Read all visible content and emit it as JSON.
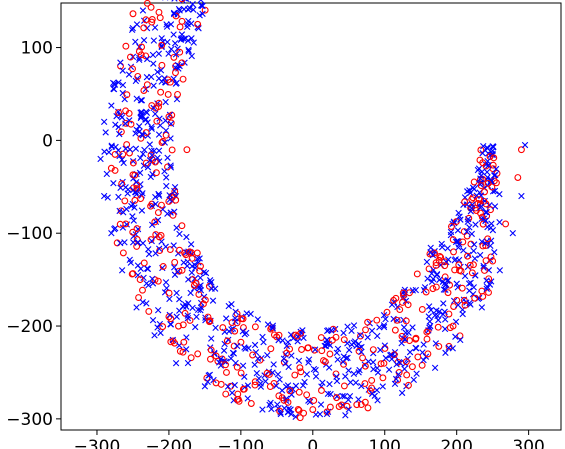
{
  "chart_data": {
    "type": "scatter",
    "title": "",
    "xlabel": "",
    "ylabel": "",
    "xlim": [
      -350,
      345
    ],
    "ylim": [
      -312,
      148
    ],
    "xticks": [
      -300,
      -200,
      -100,
      0,
      100,
      200,
      300
    ],
    "yticks": [
      -300,
      -200,
      -100,
      0,
      100
    ],
    "xtick_labels": [
      "−300",
      "−200",
      "−100",
      "0",
      "100",
      "200",
      "300"
    ],
    "ytick_labels": [
      "−300",
      "−200",
      "−100",
      "0",
      "100"
    ],
    "grid": false,
    "legend": "none",
    "shape": {
      "center": [
        0,
        -10
      ],
      "outer_radius": 290,
      "inner_radius": 195,
      "angle_start_deg": 116,
      "angle_end_deg": 361,
      "tip_start": [
        -185,
        140
      ],
      "tip_end": [
        295,
        -5
      ]
    },
    "series": [
      {
        "marker": "x",
        "color": "#0000ff",
        "count": 900,
        "values": [
          [
            -185,
            140
          ],
          [
            -160,
            122
          ],
          [
            -210,
            110
          ],
          [
            -250,
            90
          ],
          [
            -275,
            60
          ],
          [
            -290,
            20
          ],
          [
            -295,
            -20
          ],
          [
            -290,
            -60
          ],
          [
            -280,
            -100
          ],
          [
            -265,
            -140
          ],
          [
            -245,
            -180
          ],
          [
            -220,
            -210
          ],
          [
            -190,
            -240
          ],
          [
            -150,
            -265
          ],
          [
            -110,
            -280
          ],
          [
            -70,
            -290
          ],
          [
            -30,
            -295
          ],
          [
            10,
            -295
          ],
          [
            50,
            -290
          ],
          [
            90,
            -280
          ],
          [
            130,
            -265
          ],
          [
            170,
            -245
          ],
          [
            205,
            -215
          ],
          [
            235,
            -180
          ],
          [
            260,
            -140
          ],
          [
            278,
            -100
          ],
          [
            290,
            -60
          ],
          [
            295,
            -5
          ]
        ]
      },
      {
        "marker": "o",
        "color": "#ff0000",
        "count": 450,
        "values": [
          [
            -160,
            125
          ],
          [
            -185,
            95
          ],
          [
            -175,
            -10
          ],
          [
            -230,
            60
          ],
          [
            -270,
            30
          ],
          [
            -280,
            -30
          ],
          [
            -260,
            -90
          ],
          [
            -240,
            -150
          ],
          [
            -200,
            -190
          ],
          [
            -160,
            -230
          ],
          [
            -120,
            -250
          ],
          [
            -80,
            -260
          ],
          [
            -40,
            -280
          ],
          [
            0,
            -290
          ],
          [
            40,
            -285
          ],
          [
            80,
            -270
          ],
          [
            120,
            -250
          ],
          [
            160,
            -230
          ],
          [
            195,
            -200
          ],
          [
            225,
            -170
          ],
          [
            250,
            -130
          ],
          [
            268,
            -90
          ],
          [
            285,
            -40
          ],
          [
            290,
            -10
          ]
        ]
      }
    ]
  }
}
